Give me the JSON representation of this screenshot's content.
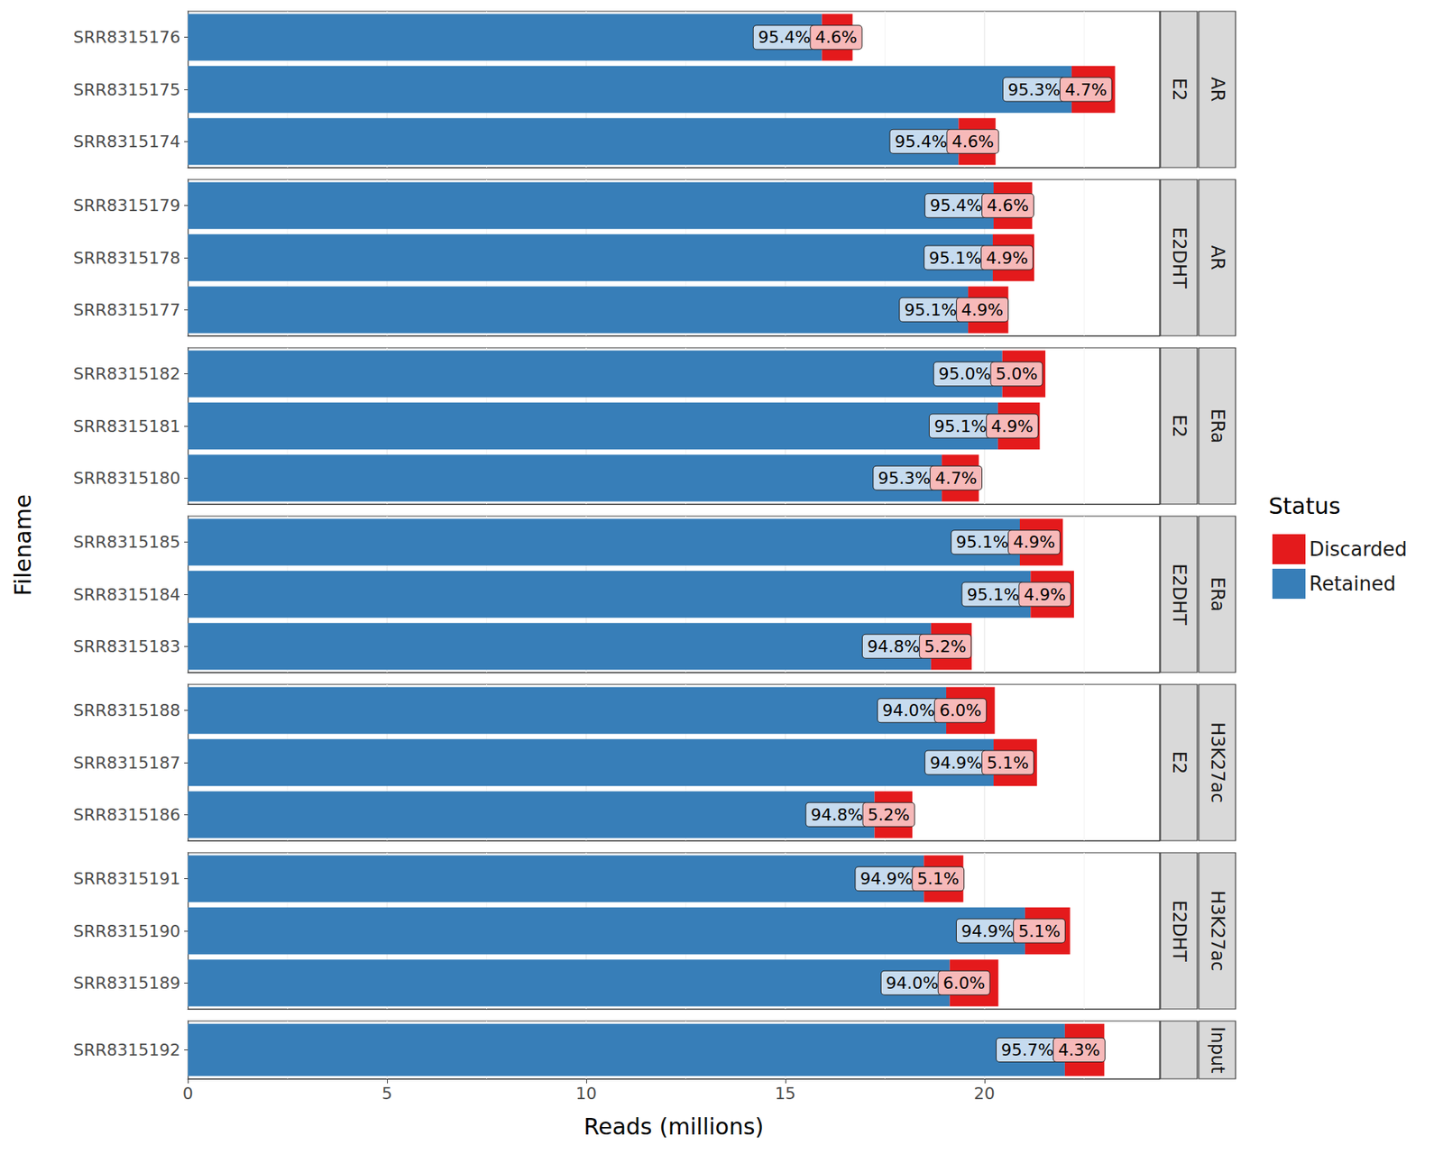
{
  "chart_data": {
    "type": "bar",
    "orientation": "horizontal",
    "stacked": true,
    "grid": true,
    "legend": "right",
    "legend_title": "Status",
    "x_label": "Reads (millions)",
    "y_label": "Filename",
    "xlim": [
      0,
      24.4
    ],
    "xticks": [
      0,
      5,
      10,
      15,
      20
    ],
    "panels": [
      {
        "treatment": "E2",
        "target": "AR",
        "categories": [
          "SRR8315176",
          "SRR8315175",
          "SRR8315174"
        ],
        "series": [
          {
            "name": "Retained",
            "color": "#377eb8",
            "values": [
              15.92,
              22.19,
              19.35
            ],
            "percent_labels": [
              "95.4%",
              "95.3%",
              "95.4%"
            ]
          },
          {
            "name": "Discarded",
            "color": "#e41a1c",
            "values": [
              0.77,
              1.09,
              0.93
            ],
            "percent_labels": [
              "4.6%",
              "4.7%",
              "4.6%"
            ]
          }
        ]
      },
      {
        "treatment": "E2DHT",
        "target": "AR",
        "categories": [
          "SRR8315179",
          "SRR8315178",
          "SRR8315177"
        ],
        "series": [
          {
            "name": "Retained",
            "color": "#377eb8",
            "values": [
              20.23,
              20.21,
              19.59
            ],
            "percent_labels": [
              "95.4%",
              "95.1%",
              "95.1%"
            ]
          },
          {
            "name": "Discarded",
            "color": "#e41a1c",
            "values": [
              0.97,
              1.04,
              1.01
            ],
            "percent_labels": [
              "4.6%",
              "4.9%",
              "4.9%"
            ]
          }
        ]
      },
      {
        "treatment": "E2",
        "target": "ERa",
        "categories": [
          "SRR8315182",
          "SRR8315181",
          "SRR8315180"
        ],
        "series": [
          {
            "name": "Retained",
            "color": "#377eb8",
            "values": [
              20.45,
              20.34,
              18.93
            ],
            "percent_labels": [
              "95.0%",
              "95.1%",
              "95.3%"
            ]
          },
          {
            "name": "Discarded",
            "color": "#e41a1c",
            "values": [
              1.08,
              1.05,
              0.93
            ],
            "percent_labels": [
              "5.0%",
              "4.9%",
              "4.7%"
            ]
          }
        ]
      },
      {
        "treatment": "E2DHT",
        "target": "ERa",
        "categories": [
          "SRR8315185",
          "SRR8315184",
          "SRR8315183"
        ],
        "series": [
          {
            "name": "Retained",
            "color": "#377eb8",
            "values": [
              20.89,
              21.16,
              18.66
            ],
            "percent_labels": [
              "95.1%",
              "95.1%",
              "94.8%"
            ]
          },
          {
            "name": "Discarded",
            "color": "#e41a1c",
            "values": [
              1.08,
              1.09,
              1.02
            ],
            "percent_labels": [
              "4.9%",
              "4.9%",
              "5.2%"
            ]
          }
        ]
      },
      {
        "treatment": "E2",
        "target": "H3K27ac",
        "categories": [
          "SRR8315188",
          "SRR8315187",
          "SRR8315186"
        ],
        "series": [
          {
            "name": "Retained",
            "color": "#377eb8",
            "values": [
              19.04,
              20.23,
              17.24
            ],
            "percent_labels": [
              "94.0%",
              "94.9%",
              "94.8%"
            ]
          },
          {
            "name": "Discarded",
            "color": "#e41a1c",
            "values": [
              1.22,
              1.09,
              0.95
            ],
            "percent_labels": [
              "6.0%",
              "5.1%",
              "5.2%"
            ]
          }
        ]
      },
      {
        "treatment": "E2DHT",
        "target": "H3K27ac",
        "categories": [
          "SRR8315191",
          "SRR8315190",
          "SRR8315189"
        ],
        "series": [
          {
            "name": "Retained",
            "color": "#377eb8",
            "values": [
              18.48,
              21.02,
              19.13
            ],
            "percent_labels": [
              "94.9%",
              "94.9%",
              "94.0%"
            ]
          },
          {
            "name": "Discarded",
            "color": "#e41a1c",
            "values": [
              0.99,
              1.13,
              1.22
            ],
            "percent_labels": [
              "5.1%",
              "5.1%",
              "6.0%"
            ]
          }
        ]
      },
      {
        "treatment": null,
        "target": "Input",
        "categories": [
          "SRR8315192"
        ],
        "series": [
          {
            "name": "Retained",
            "color": "#377eb8",
            "values": [
              22.02
            ],
            "percent_labels": [
              "95.7%"
            ]
          },
          {
            "name": "Discarded",
            "color": "#e41a1c",
            "values": [
              0.99
            ],
            "percent_labels": [
              "4.3%"
            ]
          }
        ]
      }
    ]
  }
}
